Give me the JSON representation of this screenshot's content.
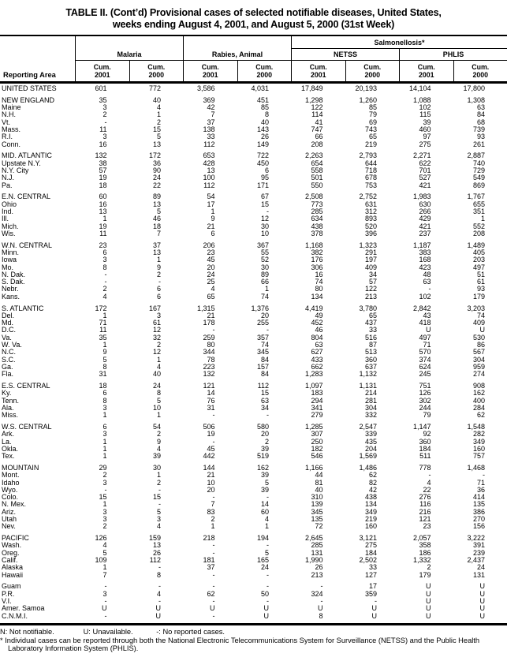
{
  "title_line1": "TABLE II. (Cont’d) Provisional cases of selected notifiable diseases, United States,",
  "title_line2": "weeks ending August 4, 2001, and August 5, 2000 (31st Week)",
  "header": {
    "reporting_area": "Reporting Area",
    "salmonellosis": "Salmonellosis*",
    "groups": [
      "Malaria",
      "Rabies, Animal",
      "NETSS",
      "PHLIS"
    ],
    "columns": [
      {
        "cum": "Cum.",
        "year": "2001"
      },
      {
        "cum": "Cum.",
        "year": "2000"
      },
      {
        "cum": "Cum.",
        "year": "2001"
      },
      {
        "cum": "Cum.",
        "year": "2000"
      },
      {
        "cum": "Cum.",
        "year": "2001"
      },
      {
        "cum": "Cum.",
        "year": "2000"
      },
      {
        "cum": "Cum.",
        "year": "2001"
      },
      {
        "cum": "Cum.",
        "year": "2000"
      }
    ]
  },
  "sections": [
    {
      "rows": [
        {
          "area": "UNITED STATES",
          "values": [
            "601",
            "772",
            "3,586",
            "4,031",
            "17,849",
            "20,193",
            "14,104",
            "17,800"
          ]
        }
      ]
    },
    {
      "rows": [
        {
          "area": "NEW ENGLAND",
          "values": [
            "35",
            "40",
            "369",
            "451",
            "1,298",
            "1,260",
            "1,088",
            "1,308"
          ]
        },
        {
          "area": "Maine",
          "values": [
            "3",
            "4",
            "42",
            "85",
            "122",
            "85",
            "102",
            "63"
          ]
        },
        {
          "area": "N.H.",
          "values": [
            "2",
            "1",
            "7",
            "8",
            "114",
            "79",
            "115",
            "84"
          ]
        },
        {
          "area": "Vt.",
          "values": [
            "-",
            "2",
            "37",
            "40",
            "41",
            "69",
            "39",
            "68"
          ]
        },
        {
          "area": "Mass.",
          "values": [
            "11",
            "15",
            "138",
            "143",
            "747",
            "743",
            "460",
            "739"
          ]
        },
        {
          "area": "R.I.",
          "values": [
            "3",
            "5",
            "33",
            "26",
            "66",
            "65",
            "97",
            "93"
          ]
        },
        {
          "area": "Conn.",
          "values": [
            "16",
            "13",
            "112",
            "149",
            "208",
            "219",
            "275",
            "261"
          ]
        }
      ]
    },
    {
      "rows": [
        {
          "area": "MID. ATLANTIC",
          "values": [
            "132",
            "172",
            "653",
            "722",
            "2,263",
            "2,793",
            "2,271",
            "2,887"
          ]
        },
        {
          "area": "Upstate N.Y.",
          "values": [
            "38",
            "36",
            "428",
            "450",
            "654",
            "644",
            "622",
            "740"
          ]
        },
        {
          "area": "N.Y. City",
          "values": [
            "57",
            "90",
            "13",
            "6",
            "558",
            "718",
            "701",
            "729"
          ]
        },
        {
          "area": "N.J.",
          "values": [
            "19",
            "24",
            "100",
            "95",
            "501",
            "678",
            "527",
            "549"
          ]
        },
        {
          "area": "Pa.",
          "values": [
            "18",
            "22",
            "112",
            "171",
            "550",
            "753",
            "421",
            "869"
          ]
        }
      ]
    },
    {
      "rows": [
        {
          "area": "E.N. CENTRAL",
          "values": [
            "60",
            "89",
            "54",
            "67",
            "2,508",
            "2,752",
            "1,983",
            "1,767"
          ]
        },
        {
          "area": "Ohio",
          "values": [
            "16",
            "13",
            "17",
            "15",
            "773",
            "631",
            "630",
            "655"
          ]
        },
        {
          "area": "Ind.",
          "values": [
            "13",
            "5",
            "1",
            "-",
            "285",
            "312",
            "266",
            "351"
          ]
        },
        {
          "area": "Ill.",
          "values": [
            "1",
            "46",
            "9",
            "12",
            "634",
            "893",
            "429",
            "1"
          ]
        },
        {
          "area": "Mich.",
          "values": [
            "19",
            "18",
            "21",
            "30",
            "438",
            "520",
            "421",
            "552"
          ]
        },
        {
          "area": "Wis.",
          "values": [
            "11",
            "7",
            "6",
            "10",
            "378",
            "396",
            "237",
            "208"
          ]
        }
      ]
    },
    {
      "rows": [
        {
          "area": "W.N. CENTRAL",
          "values": [
            "23",
            "37",
            "206",
            "367",
            "1,168",
            "1,323",
            "1,187",
            "1,489"
          ]
        },
        {
          "area": "Minn.",
          "values": [
            "6",
            "13",
            "23",
            "55",
            "382",
            "291",
            "383",
            "405"
          ]
        },
        {
          "area": "Iowa",
          "values": [
            "3",
            "1",
            "45",
            "52",
            "176",
            "197",
            "168",
            "203"
          ]
        },
        {
          "area": "Mo.",
          "values": [
            "8",
            "9",
            "20",
            "30",
            "306",
            "409",
            "423",
            "497"
          ]
        },
        {
          "area": "N. Dak.",
          "values": [
            "-",
            "2",
            "24",
            "89",
            "16",
            "34",
            "48",
            "51"
          ]
        },
        {
          "area": "S. Dak.",
          "values": [
            "-",
            "-",
            "25",
            "66",
            "74",
            "57",
            "63",
            "61"
          ]
        },
        {
          "area": "Nebr.",
          "values": [
            "2",
            "6",
            "4",
            "1",
            "80",
            "122",
            "-",
            "93"
          ]
        },
        {
          "area": "Kans.",
          "values": [
            "4",
            "6",
            "65",
            "74",
            "134",
            "213",
            "102",
            "179"
          ]
        }
      ]
    },
    {
      "rows": [
        {
          "area": "S. ATLANTIC",
          "values": [
            "172",
            "167",
            "1,315",
            "1,376",
            "4,419",
            "3,780",
            "2,842",
            "3,203"
          ]
        },
        {
          "area": "Del.",
          "values": [
            "1",
            "3",
            "21",
            "20",
            "49",
            "65",
            "43",
            "74"
          ]
        },
        {
          "area": "Md.",
          "values": [
            "71",
            "61",
            "178",
            "255",
            "452",
            "437",
            "418",
            "409"
          ]
        },
        {
          "area": "D.C.",
          "values": [
            "11",
            "12",
            "-",
            "-",
            "46",
            "33",
            "U",
            "U"
          ]
        },
        {
          "area": "Va.",
          "values": [
            "35",
            "32",
            "259",
            "357",
            "804",
            "516",
            "497",
            "530"
          ]
        },
        {
          "area": "W. Va.",
          "values": [
            "1",
            "2",
            "80",
            "74",
            "63",
            "87",
            "71",
            "86"
          ]
        },
        {
          "area": "N.C.",
          "values": [
            "9",
            "12",
            "344",
            "345",
            "627",
            "513",
            "570",
            "567"
          ]
        },
        {
          "area": "S.C.",
          "values": [
            "5",
            "1",
            "78",
            "84",
            "433",
            "360",
            "374",
            "304"
          ]
        },
        {
          "area": "Ga.",
          "values": [
            "8",
            "4",
            "223",
            "157",
            "662",
            "637",
            "624",
            "959"
          ]
        },
        {
          "area": "Fla.",
          "values": [
            "31",
            "40",
            "132",
            "84",
            "1,283",
            "1,132",
            "245",
            "274"
          ]
        }
      ]
    },
    {
      "rows": [
        {
          "area": "E.S. CENTRAL",
          "values": [
            "18",
            "24",
            "121",
            "112",
            "1,097",
            "1,131",
            "751",
            "908"
          ]
        },
        {
          "area": "Ky.",
          "values": [
            "6",
            "8",
            "14",
            "15",
            "183",
            "214",
            "126",
            "162"
          ]
        },
        {
          "area": "Tenn.",
          "values": [
            "8",
            "5",
            "76",
            "63",
            "294",
            "281",
            "302",
            "400"
          ]
        },
        {
          "area": "Ala.",
          "values": [
            "3",
            "10",
            "31",
            "34",
            "341",
            "304",
            "244",
            "284"
          ]
        },
        {
          "area": "Miss.",
          "values": [
            "1",
            "1",
            "-",
            "-",
            "279",
            "332",
            "79",
            "62"
          ]
        }
      ]
    },
    {
      "rows": [
        {
          "area": "W.S. CENTRAL",
          "values": [
            "6",
            "54",
            "506",
            "580",
            "1,285",
            "2,547",
            "1,147",
            "1,548"
          ]
        },
        {
          "area": "Ark.",
          "values": [
            "3",
            "2",
            "19",
            "20",
            "307",
            "339",
            "92",
            "282"
          ]
        },
        {
          "area": "La.",
          "values": [
            "1",
            "9",
            "-",
            "2",
            "250",
            "435",
            "360",
            "349"
          ]
        },
        {
          "area": "Okla.",
          "values": [
            "1",
            "4",
            "45",
            "39",
            "182",
            "204",
            "184",
            "160"
          ]
        },
        {
          "area": "Tex.",
          "values": [
            "1",
            "39",
            "442",
            "519",
            "546",
            "1,569",
            "511",
            "757"
          ]
        }
      ]
    },
    {
      "rows": [
        {
          "area": "MOUNTAIN",
          "values": [
            "29",
            "30",
            "144",
            "162",
            "1,166",
            "1,486",
            "778",
            "1,468"
          ]
        },
        {
          "area": "Mont.",
          "values": [
            "2",
            "1",
            "21",
            "39",
            "44",
            "62",
            "-",
            "-"
          ]
        },
        {
          "area": "Idaho",
          "values": [
            "3",
            "2",
            "10",
            "5",
            "81",
            "82",
            "4",
            "71"
          ]
        },
        {
          "area": "Wyo.",
          "values": [
            "-",
            "-",
            "20",
            "39",
            "40",
            "42",
            "22",
            "36"
          ]
        },
        {
          "area": "Colo.",
          "values": [
            "15",
            "15",
            "-",
            "-",
            "310",
            "438",
            "276",
            "414"
          ]
        },
        {
          "area": "N. Mex.",
          "values": [
            "1",
            "-",
            "7",
            "14",
            "139",
            "134",
            "116",
            "135"
          ]
        },
        {
          "area": "Ariz.",
          "values": [
            "3",
            "5",
            "83",
            "60",
            "345",
            "349",
            "216",
            "386"
          ]
        },
        {
          "area": "Utah",
          "values": [
            "3",
            "3",
            "2",
            "4",
            "135",
            "219",
            "121",
            "270"
          ]
        },
        {
          "area": "Nev.",
          "values": [
            "2",
            "4",
            "1",
            "1",
            "72",
            "160",
            "23",
            "156"
          ]
        }
      ]
    },
    {
      "rows": [
        {
          "area": "PACIFIC",
          "values": [
            "126",
            "159",
            "218",
            "194",
            "2,645",
            "3,121",
            "2,057",
            "3,222"
          ]
        },
        {
          "area": "Wash.",
          "values": [
            "4",
            "13",
            "-",
            "-",
            "285",
            "275",
            "358",
            "391"
          ]
        },
        {
          "area": "Oreg.",
          "values": [
            "5",
            "26",
            "-",
            "5",
            "131",
            "184",
            "186",
            "239"
          ]
        },
        {
          "area": "Calif.",
          "values": [
            "109",
            "112",
            "181",
            "165",
            "1,990",
            "2,502",
            "1,332",
            "2,437"
          ]
        },
        {
          "area": "Alaska",
          "values": [
            "1",
            "-",
            "37",
            "24",
            "26",
            "33",
            "2",
            "24"
          ]
        },
        {
          "area": "Hawaii",
          "values": [
            "7",
            "8",
            "-",
            "-",
            "213",
            "127",
            "179",
            "131"
          ]
        }
      ]
    },
    {
      "rows": [
        {
          "area": "Guam",
          "values": [
            "-",
            "-",
            "-",
            "-",
            "-",
            "17",
            "U",
            "U"
          ]
        },
        {
          "area": "P.R.",
          "values": [
            "3",
            "4",
            "62",
            "50",
            "324",
            "359",
            "U",
            "U"
          ]
        },
        {
          "area": "V.I.",
          "values": [
            "-",
            "-",
            "-",
            "-",
            "-",
            "-",
            "U",
            "U"
          ]
        },
        {
          "area": "Amer. Samoa",
          "values": [
            "U",
            "U",
            "U",
            "U",
            "U",
            "U",
            "U",
            "U"
          ]
        },
        {
          "area": "C.N.M.I.",
          "values": [
            "-",
            "U",
            "-",
            "U",
            "8",
            "U",
            "U",
            "U"
          ]
        }
      ]
    }
  ],
  "footnotes": {
    "legend": [
      "N: Not notifiable.",
      "U: Unavailable.",
      "-: No reported cases."
    ],
    "note": "* Individual cases can be reported through both the National Electronic Telecommunications System for Surveillance (NETSS) and the Public Health Laboratory Information System (PHLIS)."
  }
}
